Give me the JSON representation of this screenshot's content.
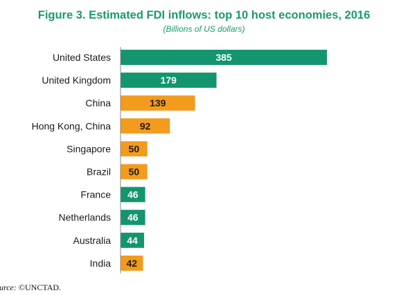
{
  "chart_data": {
    "type": "bar",
    "orientation": "horizontal",
    "title": "Figure 3. Estimated FDI inflows: top 10 host economies, 2016",
    "subtitle": "(Billions of US dollars)",
    "categories": [
      "United States",
      "United Kingdom",
      "China",
      "Hong Kong, China",
      "Singapore",
      "Brazil",
      "France",
      "Netherlands",
      "Australia",
      "India"
    ],
    "values": [
      385,
      179,
      139,
      92,
      50,
      50,
      46,
      46,
      44,
      42
    ],
    "value_labels": [
      "385",
      "179",
      "139",
      "92",
      "50",
      "50",
      "46",
      "46",
      "44",
      "42"
    ],
    "bar_colors": [
      "#13956f",
      "#13956f",
      "#f39b1d",
      "#f39b1d",
      "#f39b1d",
      "#f39b1d",
      "#13956f",
      "#13956f",
      "#13956f",
      "#f39b1d"
    ],
    "label_colors": [
      "#ffffff",
      "#ffffff",
      "#1a1a1a",
      "#1a1a1a",
      "#1a1a1a",
      "#1a1a1a",
      "#ffffff",
      "#ffffff",
      "#ffffff",
      "#1a1a1a"
    ],
    "xlim": [
      0,
      385
    ],
    "grid": false,
    "legend": "none"
  },
  "source": {
    "label": "ource:",
    "text": " ©UNCTAD."
  }
}
